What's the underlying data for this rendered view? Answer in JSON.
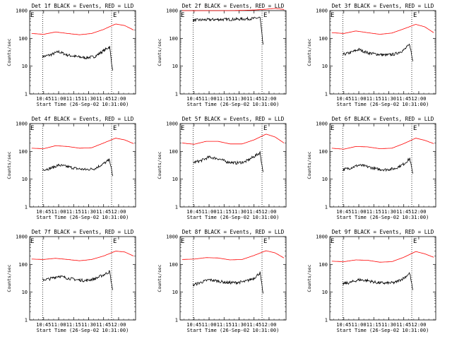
{
  "chart_data": [
    {
      "type": "line",
      "title": "Det 1f BLACK = Events, RED = LLD",
      "ylabel": "Counts/sec",
      "xlabel": "Start Time (26-Sep-02 10:31:00)",
      "yscale": "log",
      "ylim": [
        1,
        1000
      ],
      "yticks": [
        "1",
        "10",
        "100",
        "1000"
      ],
      "xlim": [
        10.5167,
        12.2833
      ],
      "xticks": [
        "10:45",
        "11:00",
        "11:15",
        "11:30",
        "11:45",
        "12:00"
      ],
      "vlines": [
        10.733,
        11.883
      ],
      "markers": [
        "E",
        "E"
      ],
      "series": [
        {
          "name": "RED",
          "color": "#ff0000",
          "x": [
            10.55,
            10.75,
            10.95,
            11.15,
            11.35,
            11.55,
            11.75,
            11.95,
            12.1,
            12.25
          ],
          "y": [
            150,
            140,
            170,
            150,
            135,
            150,
            210,
            330,
            290,
            200
          ]
        },
        {
          "name": "BLACK",
          "color": "#000000",
          "x": [
            10.733,
            10.85,
            11.0,
            11.15,
            11.3,
            11.45,
            11.6,
            11.75,
            11.85,
            11.9
          ],
          "y": [
            22,
            25,
            33,
            25,
            22,
            20,
            22,
            36,
            50,
            7
          ]
        }
      ]
    },
    {
      "type": "line",
      "title": "Det 2f BLACK = Events, RED = LLD",
      "ylabel": "Counts/sec",
      "xlabel": "Start Time (26-Sep-02 10:31:00)",
      "yscale": "log",
      "ylim": [
        1,
        1000
      ],
      "yticks": [
        "1",
        "10",
        "100",
        "1000"
      ],
      "xlim": [
        10.5167,
        12.2833
      ],
      "xticks": [
        "10:45",
        "11:00",
        "11:15",
        "11:30",
        "11:45",
        "12:00"
      ],
      "vlines": [
        10.733,
        11.883
      ],
      "markers": [
        "E",
        "E"
      ],
      "series": [
        {
          "name": "RED",
          "color": "#ff0000",
          "x": [
            10.55,
            10.75,
            10.95,
            11.15,
            11.35,
            11.55,
            11.75,
            11.95,
            12.1,
            12.25
          ],
          "y": [
            1000,
            990,
            1000,
            1000,
            1000,
            1020,
            1050,
            1120,
            1200,
            1100
          ]
        },
        {
          "name": "BLACK",
          "color": "#000000",
          "x": [
            10.733,
            10.85,
            11.0,
            11.15,
            11.3,
            11.45,
            11.6,
            11.75,
            11.85,
            11.9
          ],
          "y": [
            450,
            460,
            470,
            480,
            480,
            490,
            500,
            520,
            560,
            60
          ]
        }
      ]
    },
    {
      "type": "line",
      "title": "Det 3f BLACK = Events, RED = LLD",
      "ylabel": "Counts/sec",
      "xlabel": "Start Time (26-Sep-02 10:31:00)",
      "yscale": "log",
      "ylim": [
        1,
        1000
      ],
      "yticks": [
        "1",
        "10",
        "100",
        "1000"
      ],
      "xlim": [
        10.5167,
        12.2833
      ],
      "xticks": [
        "10:45",
        "11:00",
        "11:15",
        "11:30",
        "11:45",
        "12:00"
      ],
      "vlines": [
        10.733,
        11.883
      ],
      "markers": [
        "E",
        "E"
      ],
      "series": [
        {
          "name": "RED",
          "color": "#ff0000",
          "x": [
            10.55,
            10.75,
            10.95,
            11.15,
            11.35,
            11.55,
            11.75,
            11.95,
            12.1,
            12.25
          ],
          "y": [
            160,
            150,
            185,
            160,
            140,
            155,
            220,
            320,
            260,
            160
          ]
        },
        {
          "name": "BLACK",
          "color": "#000000",
          "x": [
            10.733,
            10.85,
            11.0,
            11.15,
            11.3,
            11.45,
            11.6,
            11.75,
            11.85,
            11.9
          ],
          "y": [
            26,
            30,
            40,
            30,
            27,
            25,
            27,
            38,
            60,
            15
          ]
        }
      ]
    },
    {
      "type": "line",
      "title": "Det 4f BLACK = Events, RED = LLD",
      "ylabel": "Counts/sec",
      "xlabel": "Start Time (26-Sep-02 10:31:00)",
      "yscale": "log",
      "ylim": [
        1,
        1000
      ],
      "yticks": [
        "1",
        "10",
        "100",
        "1000"
      ],
      "xlim": [
        10.5167,
        12.2833
      ],
      "xticks": [
        "10:45",
        "11:00",
        "11:15",
        "11:30",
        "11:45",
        "12:00"
      ],
      "vlines": [
        10.733,
        11.883
      ],
      "markers": [
        "E",
        "E"
      ],
      "series": [
        {
          "name": "RED",
          "color": "#ff0000",
          "x": [
            10.55,
            10.75,
            10.95,
            11.15,
            11.35,
            11.55,
            11.75,
            11.95,
            12.1,
            12.25
          ],
          "y": [
            130,
            125,
            160,
            150,
            130,
            135,
            200,
            300,
            260,
            190
          ]
        },
        {
          "name": "BLACK",
          "color": "#000000",
          "x": [
            10.733,
            10.85,
            11.0,
            11.15,
            11.3,
            11.45,
            11.6,
            11.75,
            11.85,
            11.9
          ],
          "y": [
            22,
            24,
            32,
            28,
            24,
            22,
            24,
            36,
            50,
            13
          ]
        }
      ]
    },
    {
      "type": "line",
      "title": "Det 5f BLACK = Events, RED = LLD",
      "ylabel": "Counts/sec",
      "xlabel": "Start Time (26-Sep-02 10:31:00)",
      "yscale": "log",
      "ylim": [
        1,
        1000
      ],
      "yticks": [
        "1",
        "10",
        "100",
        "1000"
      ],
      "xlim": [
        10.5167,
        12.2833
      ],
      "xticks": [
        "10:45",
        "11:00",
        "11:15",
        "11:30",
        "11:45",
        "12:00"
      ],
      "vlines": [
        10.733,
        11.883
      ],
      "markers": [
        "E",
        "E"
      ],
      "series": [
        {
          "name": "RED",
          "color": "#ff0000",
          "x": [
            10.55,
            10.75,
            10.95,
            11.15,
            11.35,
            11.55,
            11.75,
            11.95,
            12.1,
            12.25
          ],
          "y": [
            200,
            180,
            230,
            230,
            185,
            185,
            260,
            420,
            330,
            200
          ]
        },
        {
          "name": "BLACK",
          "color": "#000000",
          "x": [
            10.733,
            10.85,
            11.0,
            11.15,
            11.3,
            11.45,
            11.6,
            11.75,
            11.85,
            11.9
          ],
          "y": [
            40,
            45,
            62,
            55,
            42,
            38,
            42,
            65,
            90,
            18
          ]
        }
      ]
    },
    {
      "type": "line",
      "title": "Det 6f BLACK = Events, RED = LLD",
      "ylabel": "Counts/sec",
      "xlabel": "Start Time (26-Sep-02 10:31:00)",
      "yscale": "log",
      "ylim": [
        1,
        1000
      ],
      "yticks": [
        "1",
        "10",
        "100",
        "1000"
      ],
      "xlim": [
        10.5167,
        12.2833
      ],
      "xticks": [
        "10:45",
        "11:00",
        "11:15",
        "11:30",
        "11:45",
        "12:00"
      ],
      "vlines": [
        10.733,
        11.883
      ],
      "markers": [
        "E",
        "E"
      ],
      "series": [
        {
          "name": "RED",
          "color": "#ff0000",
          "x": [
            10.55,
            10.75,
            10.95,
            11.15,
            11.35,
            11.55,
            11.75,
            11.95,
            12.1,
            12.25
          ],
          "y": [
            130,
            120,
            150,
            145,
            125,
            130,
            190,
            300,
            250,
            190
          ]
        },
        {
          "name": "BLACK",
          "color": "#000000",
          "x": [
            10.733,
            10.85,
            11.0,
            11.15,
            11.3,
            11.45,
            11.6,
            11.75,
            11.85,
            11.9
          ],
          "y": [
            22,
            25,
            32,
            28,
            23,
            22,
            24,
            35,
            55,
            16
          ]
        }
      ]
    },
    {
      "type": "line",
      "title": "Det 7f BLACK = Events, RED = LLD",
      "ylabel": "Counts/sec",
      "xlabel": "Start Time (26-Sep-02 10:31:00)",
      "yscale": "log",
      "ylim": [
        1,
        1000
      ],
      "yticks": [
        "1",
        "10",
        "100",
        "1000"
      ],
      "xlim": [
        10.5167,
        12.2833
      ],
      "xticks": [
        "10:45",
        "11:00",
        "11:15",
        "11:30",
        "11:45",
        "12:00"
      ],
      "vlines": [
        10.733,
        11.883
      ],
      "markers": [
        "E",
        "E"
      ],
      "series": [
        {
          "name": "RED",
          "color": "#ff0000",
          "x": [
            10.55,
            10.75,
            10.95,
            11.15,
            11.35,
            11.55,
            11.75,
            11.95,
            12.1,
            12.25
          ],
          "y": [
            155,
            150,
            165,
            150,
            135,
            150,
            200,
            300,
            280,
            200
          ]
        },
        {
          "name": "BLACK",
          "color": "#000000",
          "x": [
            10.733,
            10.85,
            11.0,
            11.15,
            11.3,
            11.45,
            11.6,
            11.75,
            11.85,
            11.9
          ],
          "y": [
            28,
            30,
            38,
            32,
            28,
            26,
            30,
            42,
            55,
            12
          ]
        }
      ]
    },
    {
      "type": "line",
      "title": "Det 8f BLACK = Events, RED = LLD",
      "ylabel": "Counts/sec",
      "xlabel": "Start Time (26-Sep-02 10:31:00)",
      "yscale": "log",
      "ylim": [
        1,
        1000
      ],
      "yticks": [
        "1",
        "10",
        "100",
        "1000"
      ],
      "xlim": [
        10.5167,
        12.2833
      ],
      "xticks": [
        "10:45",
        "11:00",
        "11:15",
        "11:30",
        "11:45",
        "12:00"
      ],
      "vlines": [
        10.733,
        11.883
      ],
      "markers": [
        "E",
        "E"
      ],
      "series": [
        {
          "name": "RED",
          "color": "#ff0000",
          "x": [
            10.55,
            10.75,
            10.95,
            11.15,
            11.35,
            11.55,
            11.75,
            11.95,
            12.1,
            12.25
          ],
          "y": [
            150,
            155,
            175,
            170,
            145,
            150,
            210,
            310,
            260,
            170
          ]
        },
        {
          "name": "BLACK",
          "color": "#000000",
          "x": [
            10.733,
            10.85,
            11.0,
            11.15,
            11.3,
            11.45,
            11.6,
            11.75,
            11.85,
            11.9
          ],
          "y": [
            18,
            22,
            28,
            25,
            22,
            22,
            24,
            32,
            50,
            9
          ]
        }
      ]
    },
    {
      "type": "line",
      "title": "Det 9f BLACK = Events, RED = LLD",
      "ylabel": "Counts/sec",
      "xlabel": "Start Time (26-Sep-02 10:31:00)",
      "yscale": "log",
      "ylim": [
        1,
        1000
      ],
      "yticks": [
        "1",
        "10",
        "100",
        "1000"
      ],
      "xlim": [
        10.5167,
        12.2833
      ],
      "xticks": [
        "10:45",
        "11:00",
        "11:15",
        "11:30",
        "11:45",
        "12:00"
      ],
      "vlines": [
        10.733,
        11.883
      ],
      "markers": [
        "E",
        "E"
      ],
      "series": [
        {
          "name": "RED",
          "color": "#ff0000",
          "x": [
            10.55,
            10.75,
            10.95,
            11.15,
            11.35,
            11.55,
            11.75,
            11.95,
            12.1,
            12.25
          ],
          "y": [
            130,
            125,
            145,
            140,
            120,
            125,
            180,
            290,
            240,
            180
          ]
        },
        {
          "name": "BLACK",
          "color": "#000000",
          "x": [
            10.733,
            10.85,
            11.0,
            11.15,
            11.3,
            11.45,
            11.6,
            11.75,
            11.85,
            11.9
          ],
          "y": [
            20,
            22,
            28,
            26,
            22,
            21,
            22,
            32,
            48,
            12
          ]
        }
      ]
    }
  ]
}
